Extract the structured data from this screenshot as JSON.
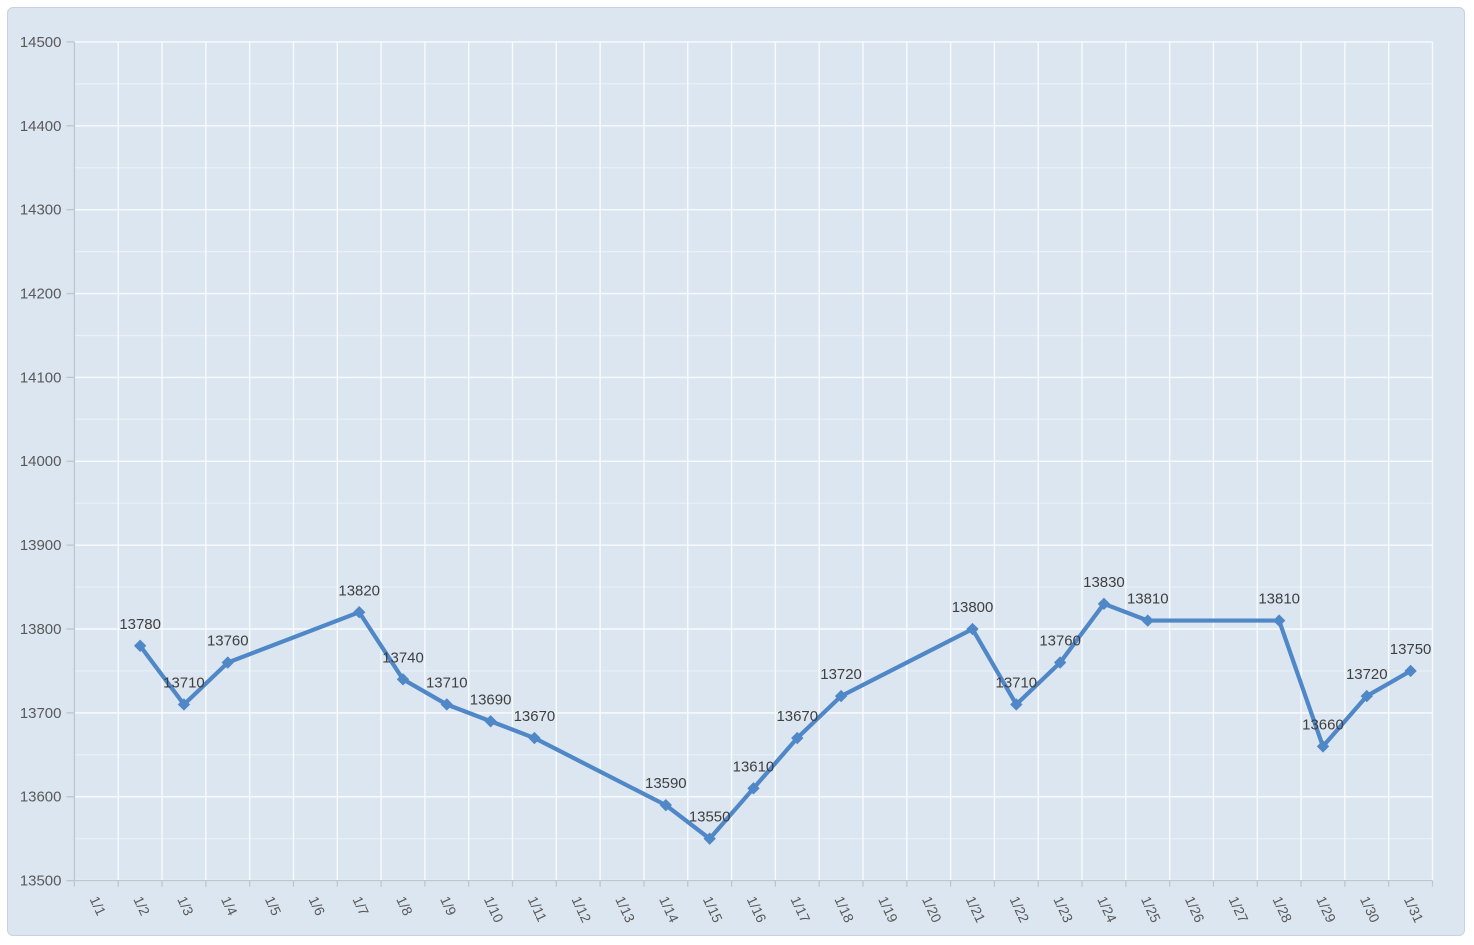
{
  "window": {
    "background_color": "#ffffff"
  },
  "chart": {
    "background_color": "#dce6f1",
    "border_color": "#c9d2de",
    "grid_major_color": "#f8fbfe",
    "grid_minor_color": "#e9f0f8",
    "axis_color": "#bfc5cd",
    "tick_label_color": "#595959",
    "data_label_color": "#3f3f3f",
    "series_color": "#4f87c7"
  },
  "chart_data": {
    "type": "line",
    "title": "",
    "xlabel": "",
    "ylabel": "",
    "legend": "none",
    "grid": "major-and-minor",
    "marker": "diamond",
    "data_labels": "above",
    "ylim": [
      13500,
      14500
    ],
    "y_major_step": 100,
    "y_minor_step": 50,
    "yticks": [
      13500,
      13600,
      13700,
      13800,
      13900,
      14000,
      14100,
      14200,
      14300,
      14400,
      14500
    ],
    "categories": [
      "1/1",
      "1/2",
      "1/3",
      "1/4",
      "1/5",
      "1/6",
      "1/7",
      "1/8",
      "1/9",
      "1/10",
      "1/11",
      "1/12",
      "1/13",
      "1/14",
      "1/15",
      "1/16",
      "1/17",
      "1/18",
      "1/19",
      "1/20",
      "1/21",
      "1/22",
      "1/23",
      "1/24",
      "1/25",
      "1/26",
      "1/27",
      "1/28",
      "1/29",
      "1/30",
      "1/31"
    ],
    "series": [
      {
        "values": [
          null,
          13780,
          13710,
          13760,
          null,
          null,
          13820,
          13740,
          13710,
          13690,
          13670,
          null,
          null,
          13590,
          13550,
          13610,
          13670,
          13720,
          null,
          null,
          13800,
          13710,
          13760,
          13830,
          13810,
          null,
          null,
          13810,
          13660,
          13720,
          13750
        ]
      }
    ]
  }
}
